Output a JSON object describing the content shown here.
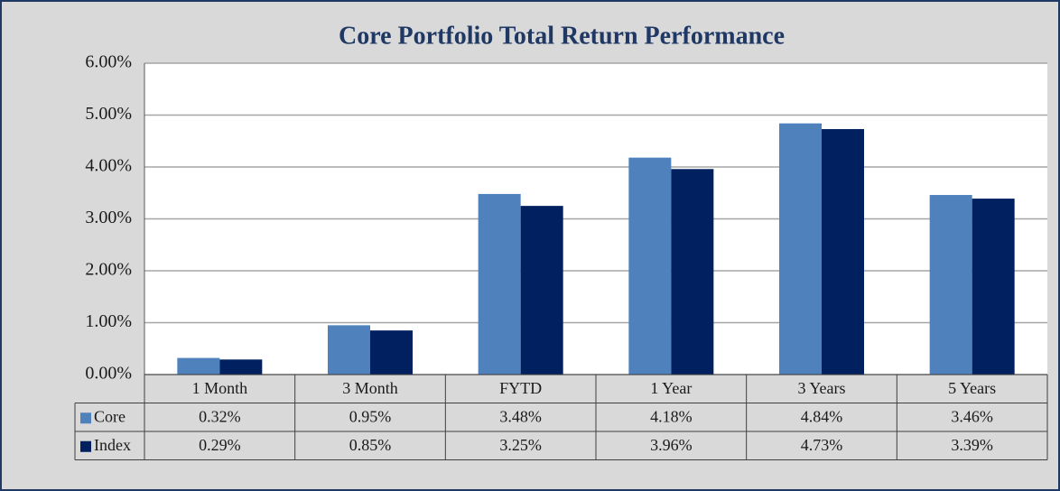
{
  "chart_data": {
    "type": "bar",
    "title": "Core Portfolio Total Return Performance",
    "categories": [
      "1 Month",
      "3 Month",
      "FYTD",
      "1 Year",
      "3 Years",
      "5 Years"
    ],
    "series": [
      {
        "name": "Core",
        "color": "#4f81bd",
        "values": [
          0.32,
          0.95,
          3.48,
          4.18,
          4.84,
          3.46
        ],
        "value_labels": [
          "0.32%",
          "0.95%",
          "3.48%",
          "4.18%",
          "4.84%",
          "3.46%"
        ]
      },
      {
        "name": "Index",
        "color": "#002060",
        "values": [
          0.29,
          0.85,
          3.25,
          3.96,
          4.73,
          3.39
        ],
        "value_labels": [
          "0.29%",
          "0.85%",
          "3.25%",
          "3.96%",
          "4.73%",
          "3.39%"
        ]
      }
    ],
    "ylim": [
      0,
      6
    ],
    "yticks": [
      {
        "value": 0,
        "label": "0.00%"
      },
      {
        "value": 1,
        "label": "1.00%"
      },
      {
        "value": 2,
        "label": "2.00%"
      },
      {
        "value": 3,
        "label": "3.00%"
      },
      {
        "value": 4,
        "label": "4.00%"
      },
      {
        "value": 5,
        "label": "5.00%"
      },
      {
        "value": 6,
        "label": "6.00%"
      }
    ],
    "grid": true
  }
}
